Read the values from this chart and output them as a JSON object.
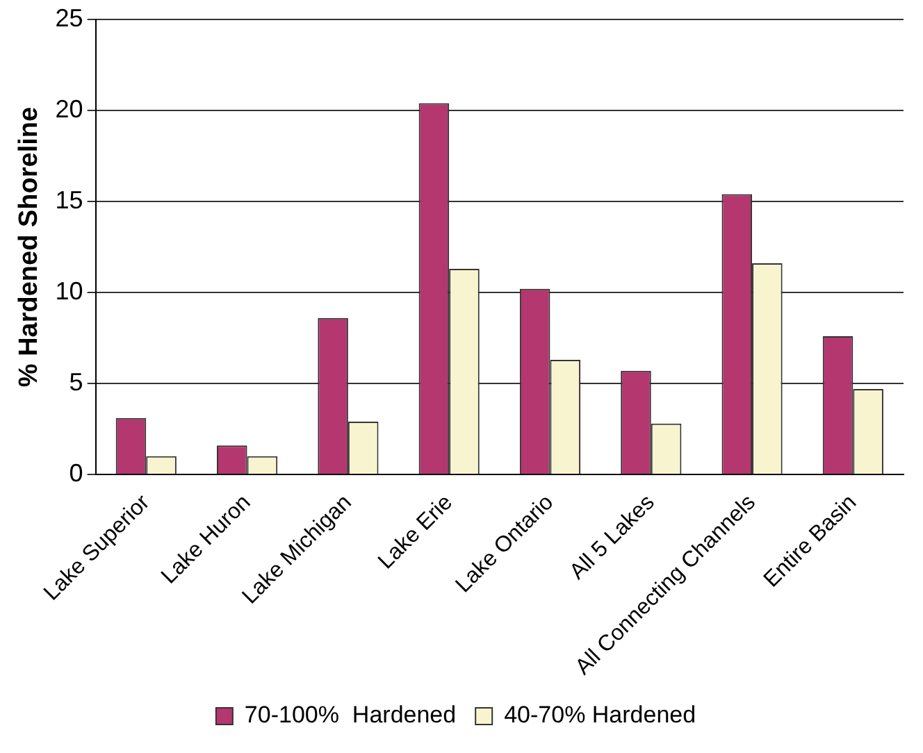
{
  "chart_data": {
    "type": "bar",
    "ylabel": "% Hardened Shoreline",
    "categories": [
      "Lake Superior",
      "Lake Huron",
      "Lake Michigan",
      "Lake Erie",
      "Lake Ontario",
      "All 5 Lakes",
      "All Connecting Channels",
      "Entire Basin"
    ],
    "series": [
      {
        "name": "70-100%  Hardened",
        "color": "#b5376f",
        "values": [
          3.1,
          1.6,
          8.6,
          20.4,
          10.2,
          5.7,
          15.4,
          7.6
        ]
      },
      {
        "name": "40-70% Hardened",
        "color": "#f8f4cf",
        "values": [
          1.0,
          1.0,
          2.9,
          11.3,
          6.3,
          2.8,
          11.6,
          4.7
        ]
      }
    ],
    "ylim": [
      0,
      25
    ],
    "yticks": [
      0,
      5,
      10,
      15,
      20,
      25
    ],
    "grid": "y",
    "legend": "bottom"
  }
}
